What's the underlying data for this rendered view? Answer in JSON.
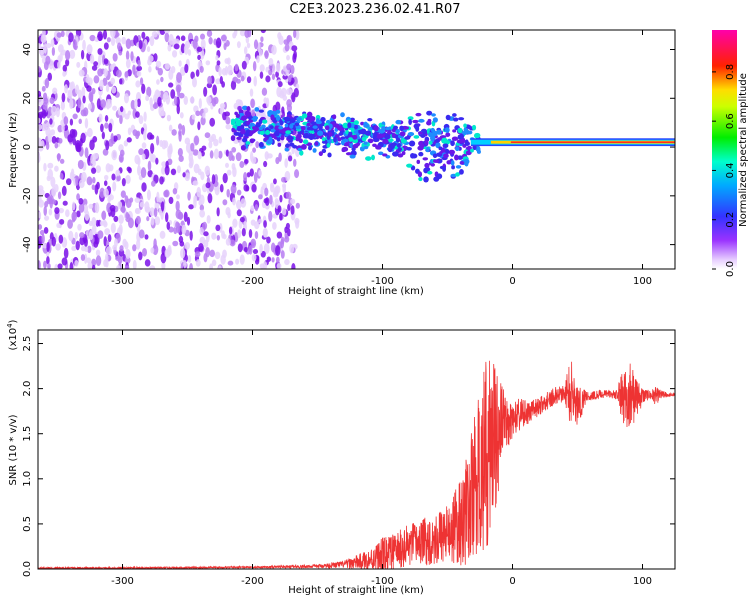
{
  "figure_title": "C2E3.2023.236.02.41.R07",
  "colors": {
    "spectrogram_weak": "#cfa6f7",
    "spectrogram_mid": "#7a10e8",
    "snr_line": "#ee3333",
    "axes": "#000000"
  },
  "chart_data": [
    {
      "type": "heatmap",
      "title": "",
      "xlabel": "Height of straight line (km)",
      "ylabel": "Frequency (Hz)",
      "xlim": [
        -365,
        125
      ],
      "ylim": [
        -50,
        48
      ],
      "xticks": [
        -300,
        -200,
        -100,
        0,
        100
      ],
      "yticks": [
        -40,
        -20,
        0,
        20,
        40
      ],
      "colorbar": {
        "label": "Normalized spectral amplitude",
        "range": [
          0,
          1
        ],
        "ticks": [
          "0.0",
          "0.2",
          "0.4",
          "0.6",
          "0.8"
        ],
        "colormap": "rainbow (purple-blue-cyan-green-yellow-red-magenta)"
      },
      "features": [
        {
          "region": "x -365 to -175",
          "description": "broadband noise across all frequencies, purple/violet"
        },
        {
          "region": "x -215 to -30",
          "description": "signal band centered near 5-10 Hz drifting down toward 0 Hz, blue/cyan"
        },
        {
          "region": "x -30 to 125",
          "description": "narrow line at about 2 Hz, red/yellow core"
        }
      ]
    },
    {
      "type": "line",
      "title": "",
      "xlabel": "Height of straight line (km)",
      "ylabel": "SNR (10 * v/v)",
      "y_multiplier_label": "(x10",
      "y_multiplier_exp": "4",
      "xlim": [
        -365,
        125
      ],
      "ylim": [
        0,
        2.65
      ],
      "xticks": [
        -300,
        -200,
        -100,
        0,
        100
      ],
      "yticks": [
        "0.0",
        "0.5",
        "1.0",
        "1.5",
        "2.0",
        "2.5"
      ],
      "series": [
        {
          "x": [
            -365,
            -300,
            -250,
            -200,
            -150,
            -130,
            -110,
            -100,
            -90,
            -80,
            -70,
            -60,
            -50,
            -40,
            -35,
            -30,
            -25,
            -20,
            -15,
            -10,
            -5,
            0,
            5,
            10,
            15,
            20,
            25,
            30,
            35,
            40,
            45,
            50,
            55,
            60,
            65,
            70,
            75,
            80,
            85,
            90,
            95,
            100,
            105,
            110,
            115,
            120,
            125
          ],
          "values": [
            0.01,
            0.01,
            0.015,
            0.02,
            0.03,
            0.05,
            0.1,
            0.15,
            0.2,
            0.25,
            0.3,
            0.33,
            0.4,
            0.5,
            0.65,
            0.85,
            1.1,
            1.25,
            1.45,
            1.55,
            1.6,
            1.65,
            1.7,
            1.72,
            1.75,
            1.8,
            1.85,
            1.9,
            1.93,
            1.95,
            1.96,
            1.8,
            1.9,
            1.92,
            1.93,
            1.94,
            1.94,
            1.93,
            1.92,
            1.93,
            1.9,
            1.92,
            1.93,
            1.92,
            1.93,
            1.93,
            1.93
          ],
          "noise_envelope": [
            0.01,
            0.01,
            0.01,
            0.01,
            0.02,
            0.04,
            0.12,
            0.2,
            0.2,
            0.25,
            0.25,
            0.3,
            0.3,
            0.5,
            0.6,
            0.8,
            0.9,
            1.1,
            1.0,
            0.6,
            0.3,
            0.2,
            0.2,
            0.15,
            0.12,
            0.1,
            0.1,
            0.1,
            0.1,
            0.1,
            0.4,
            0.3,
            0.1,
            0.05,
            0.05,
            0.05,
            0.05,
            0.05,
            0.3,
            0.4,
            0.25,
            0.1,
            0.05,
            0.1,
            0.05,
            0.02,
            0.02
          ]
        }
      ]
    }
  ]
}
